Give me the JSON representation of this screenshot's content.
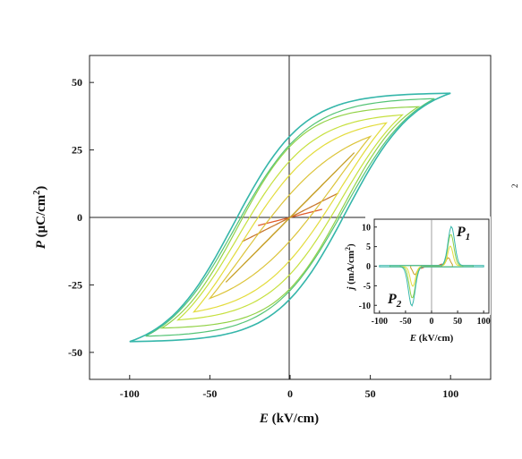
{
  "chart_data": [
    {
      "type": "line",
      "title": "",
      "xlabel": {
        "var": "E",
        "unit": " (kV/cm)"
      },
      "ylabel": {
        "var": "P",
        "unit": " (μC/cm",
        "sup": "2",
        "close": ")"
      },
      "xlim": [
        -125,
        125
      ],
      "ylim": [
        -60,
        60
      ],
      "xticks": [
        "-100",
        "-50",
        "0",
        "50",
        "100"
      ],
      "yticks": [
        "-50",
        "-25",
        "0",
        "25",
        "50"
      ],
      "xtick_values": [
        -100,
        -50,
        0,
        50,
        100
      ],
      "ytick_values": [
        -50,
        -25,
        0,
        25,
        50
      ],
      "grid": false,
      "legend": "none",
      "loops": [
        {
          "emax": 20,
          "pmax": 3,
          "pr": 1,
          "ec": 10,
          "color": "#e05a2a"
        },
        {
          "emax": 30,
          "pmax": 9,
          "pr": 4,
          "ec": 20,
          "color": "#c8782e"
        },
        {
          "emax": 40,
          "pmax": 24,
          "pr": 12,
          "ec": 26,
          "color": "#c7a028"
        },
        {
          "emax": 50,
          "pmax": 30,
          "pr": 22,
          "ec": 29,
          "color": "#dcc43a"
        },
        {
          "emax": 60,
          "pmax": 35,
          "pr": 26,
          "ec": 31,
          "color": "#e3dc3c"
        },
        {
          "emax": 70,
          "pmax": 38,
          "pr": 28,
          "ec": 32,
          "color": "#c6e03e"
        },
        {
          "emax": 80,
          "pmax": 41,
          "pr": 30,
          "ec": 33,
          "color": "#92d247"
        },
        {
          "emax": 90,
          "pmax": 44,
          "pr": 31,
          "ec": 34,
          "color": "#55c476"
        },
        {
          "emax": 100,
          "pmax": 46,
          "pr": 32,
          "ec": 35,
          "color": "#35b6aa"
        }
      ]
    },
    {
      "type": "line",
      "title": "",
      "xlabel": {
        "var": "E",
        "unit": " (kV/cm)"
      },
      "ylabel": {
        "var": "j",
        "unit": " (mA/cm",
        "sup": "2",
        "close": ")"
      },
      "xlim": [
        -110,
        110
      ],
      "ylim": [
        -12,
        12
      ],
      "xticks": [
        "-100",
        "-50",
        "0",
        "50",
        "100"
      ],
      "yticks": [
        "-10",
        "-5",
        "0",
        "5",
        "10"
      ],
      "xtick_values": [
        -100,
        -50,
        0,
        50,
        100
      ],
      "ytick_values": [
        -10,
        -5,
        0,
        5,
        10
      ],
      "annotations": {
        "p1": {
          "letter": "P",
          "sub": "1"
        },
        "p2": {
          "letter": "P",
          "sub": "2"
        }
      },
      "curves": [
        {
          "emax": 20,
          "peak": 0.4,
          "pos": 20,
          "color": "#e05a2a"
        },
        {
          "emax": 40,
          "peak": 2,
          "pos": 32,
          "color": "#c7a028"
        },
        {
          "emax": 60,
          "peak": 5,
          "pos": 36,
          "color": "#e3dc3c"
        },
        {
          "emax": 80,
          "peak": 8,
          "pos": 37,
          "color": "#92d247"
        },
        {
          "emax": 100,
          "peak": 10,
          "pos": 38,
          "color": "#35b6aa"
        }
      ]
    }
  ],
  "edge_text": "2"
}
